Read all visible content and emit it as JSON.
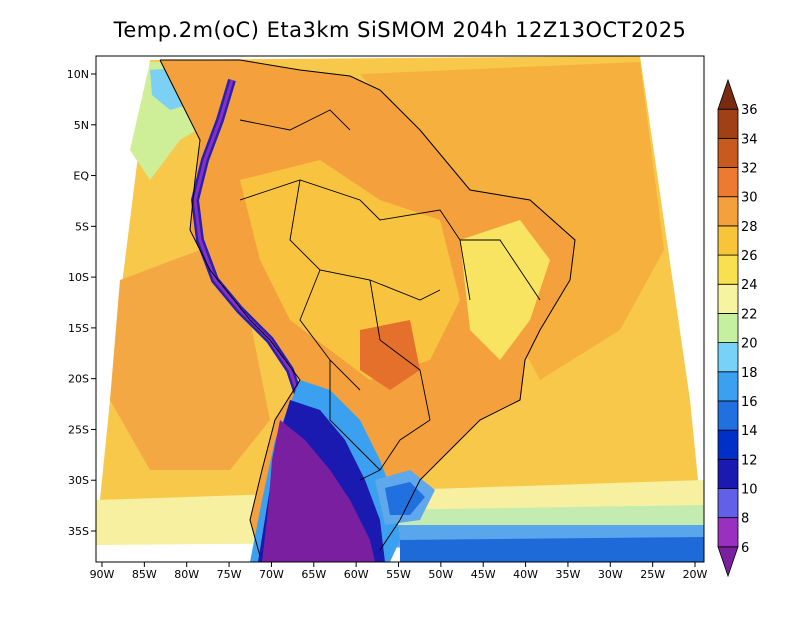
{
  "title": "Temp.2m(oC) Eta3km SiSMOM 204h 12Z13OCT2025",
  "map": {
    "projection": "lat-lon",
    "lon_range": [
      -91,
      -19
    ],
    "lat_range": [
      -38,
      12
    ],
    "region": "South America / Brazil",
    "variable": "2 m temperature",
    "units": "oC"
  },
  "axes": {
    "lon_ticks": [
      {
        "value": -90,
        "label": "90W"
      },
      {
        "value": -85,
        "label": "85W"
      },
      {
        "value": -80,
        "label": "80W"
      },
      {
        "value": -75,
        "label": "75W"
      },
      {
        "value": -70,
        "label": "70W"
      },
      {
        "value": -65,
        "label": "65W"
      },
      {
        "value": -60,
        "label": "60W"
      },
      {
        "value": -55,
        "label": "55W"
      },
      {
        "value": -50,
        "label": "50W"
      },
      {
        "value": -45,
        "label": "45W"
      },
      {
        "value": -40,
        "label": "40W"
      },
      {
        "value": -35,
        "label": "35W"
      },
      {
        "value": -30,
        "label": "30W"
      },
      {
        "value": -25,
        "label": "25W"
      },
      {
        "value": -20,
        "label": "20W"
      }
    ],
    "lat_ticks": [
      {
        "value": 10,
        "label": "10N"
      },
      {
        "value": 5,
        "label": "5N"
      },
      {
        "value": 0,
        "label": "EQ"
      },
      {
        "value": -5,
        "label": "5S"
      },
      {
        "value": -10,
        "label": "10S"
      },
      {
        "value": -15,
        "label": "15S"
      },
      {
        "value": -20,
        "label": "20S"
      },
      {
        "value": -25,
        "label": "25S"
      },
      {
        "value": -30,
        "label": "30S"
      },
      {
        "value": -35,
        "label": "35S"
      }
    ]
  },
  "colorbar": {
    "labels": [
      "6",
      "8",
      "10",
      "12",
      "14",
      "16",
      "18",
      "20",
      "22",
      "24",
      "26",
      "28",
      "30",
      "32",
      "34",
      "36"
    ],
    "colors": [
      "#7a1fa0",
      "#9a30c0",
      "#6060e8",
      "#1a1ab0",
      "#0030c8",
      "#2070e0",
      "#3ca0f0",
      "#78d2f8",
      "#c4f0a0",
      "#f6f4a0",
      "#f8e050",
      "#f8c43a",
      "#f4a03c",
      "#ec7a30",
      "#c85a20",
      "#a04015",
      "#7a2a10"
    ]
  },
  "legend_temp_zones": {
    "cold_south": "#7a1fa0",
    "ocean_warm": "#f6c445",
    "continent_hot": "#f4a03c"
  }
}
